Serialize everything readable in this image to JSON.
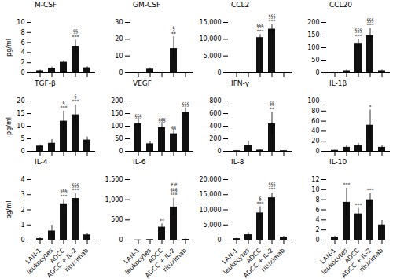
{
  "chart_data": [
    {
      "type": "bar",
      "title": "M-CSF",
      "ylabel": "pg/ml",
      "tick_labels": "y",
      "color": "#111111",
      "categories": [
        "LAN-1",
        "leukocytes",
        "ADCC",
        "ADCC + IL-2",
        "rituximab"
      ],
      "values": [
        0.4,
        0.9,
        2.1,
        5.2,
        1.0
      ],
      "errors": [
        0.15,
        0.25,
        0.3,
        1.3,
        0.2
      ],
      "annotations": [
        null,
        null,
        null,
        "§§\n***",
        null
      ],
      "ylim": [
        0,
        10
      ],
      "yticks": [
        0,
        2,
        4,
        6,
        8,
        10
      ]
    },
    {
      "type": "bar",
      "title": "GM-CSF",
      "tick_labels": "y",
      "color": "#111111",
      "categories": [
        "LAN-1",
        "leukocytes",
        "ADCC",
        "ADCC + IL-2",
        "rituximab"
      ],
      "values": [
        0.05,
        2.2,
        0.05,
        14.5,
        0.05
      ],
      "errors": [
        0.02,
        0.7,
        0.02,
        7.0,
        0.02
      ],
      "annotations": [
        null,
        null,
        null,
        "§\n**",
        null
      ],
      "ylim": [
        0,
        30
      ],
      "yticks": [
        0,
        10,
        20,
        30
      ]
    },
    {
      "type": "bar",
      "title": "CCL2",
      "tick_labels": "y",
      "color": "#111111",
      "categories": [
        "LAN-1",
        "leukocytes",
        "ADCC",
        "ADCC + IL-2",
        "rituximab"
      ],
      "values": [
        200,
        60,
        10500,
        13000,
        60
      ],
      "errors": [
        80,
        25,
        900,
        1300,
        25
      ],
      "annotations": [
        null,
        null,
        "§§§\n***",
        "§§§\n***",
        null
      ],
      "ylim": [
        0,
        15000
      ],
      "yticks": [
        0,
        {
          "value": 5000,
          "label": "5,000"
        },
        {
          "value": 10000,
          "label": "10,000"
        },
        {
          "value": 15000,
          "label": "15,000"
        }
      ]
    },
    {
      "type": "bar",
      "title": "CCL20",
      "tick_labels": "y",
      "color": "#111111",
      "categories": [
        "LAN-1",
        "leukocytes",
        "ADCC",
        "ADCC + IL-2",
        "rituximab"
      ],
      "values": [
        2,
        8,
        115,
        148,
        8
      ],
      "errors": [
        1,
        3,
        18,
        28,
        3
      ],
      "annotations": [
        null,
        null,
        "§§§\n***",
        "§§§\n***",
        null
      ],
      "ylim": [
        0,
        200
      ],
      "yticks": [
        0,
        50,
        100,
        150,
        200
      ]
    },
    {
      "type": "bar",
      "title": "TGF-β",
      "ylabel": "pg/ml",
      "tick_labels": "y",
      "color": "#111111",
      "categories": [
        "LAN-1",
        "leukocytes",
        "ADCC",
        "ADCC + IL-2",
        "rituximab"
      ],
      "values": [
        2.1,
        3.2,
        12.0,
        14.5,
        4.5
      ],
      "errors": [
        0.5,
        1.5,
        4.0,
        4.0,
        1.2
      ],
      "annotations": [
        null,
        null,
        "§\n***",
        "§\n***",
        null
      ],
      "ylim": [
        0,
        20
      ],
      "yticks": [
        0,
        5,
        10,
        15,
        20
      ]
    },
    {
      "type": "bar",
      "title": "VEGF",
      "tick_labels": "y",
      "color": "#111111",
      "categories": [
        "LAN-1",
        "leukocytes",
        "ADCC",
        "ADCC + IL-2",
        "rituximab"
      ],
      "values": [
        110,
        30,
        95,
        70,
        155
      ],
      "errors": [
        18,
        8,
        15,
        10,
        18
      ],
      "annotations": [
        "§§§",
        null,
        "§§§",
        "§§",
        "§§§"
      ],
      "ylim": [
        0,
        200
      ],
      "yticks": [
        0,
        50,
        100,
        150,
        200
      ]
    },
    {
      "type": "bar",
      "title": "IFN-γ",
      "tick_labels": "y",
      "color": "#111111",
      "categories": [
        "LAN-1",
        "leukocytes",
        "ADCC",
        "ADCC + IL-2",
        "rituximab"
      ],
      "values": [
        10,
        100,
        20,
        440,
        10
      ],
      "errors": [
        5,
        60,
        8,
        180,
        5
      ],
      "annotations": [
        null,
        null,
        null,
        "§§\n**",
        null
      ],
      "ylim": [
        0,
        800
      ],
      "yticks": [
        0,
        200,
        400,
        600,
        800
      ]
    },
    {
      "type": "bar",
      "title": "IL-1β",
      "tick_labels": "y",
      "color": "#111111",
      "categories": [
        "LAN-1",
        "leukocytes",
        "ADCC",
        "ADCC + IL-2",
        "rituximab"
      ],
      "values": [
        2,
        8,
        12,
        52,
        8
      ],
      "errors": [
        0.5,
        3,
        4,
        30,
        3
      ],
      "annotations": [
        null,
        null,
        null,
        "*",
        null
      ],
      "ylim": [
        0,
        100
      ],
      "yticks": [
        0,
        20,
        40,
        60,
        80,
        100
      ]
    },
    {
      "type": "bar",
      "title": "IL-4",
      "ylabel": "pg/ml",
      "color": "#111111",
      "categories": [
        "LAN-1",
        "leukocytes",
        "ADCC",
        "ADCC + IL-2",
        "rituximab"
      ],
      "values": [
        0.1,
        0.6,
        2.4,
        2.75,
        0.35
      ],
      "errors": [
        0.05,
        0.38,
        0.28,
        0.32,
        0.12
      ],
      "annotations": [
        null,
        null,
        "§§§\n***",
        "§§§\n***",
        null
      ],
      "ylim": [
        0,
        4
      ],
      "yticks": [
        0,
        1,
        2,
        3,
        4
      ]
    },
    {
      "type": "bar",
      "title": "IL-6",
      "color": "#111111",
      "categories": [
        "LAN-1",
        "leukocytes",
        "ADCC",
        "ADCC + IL-2",
        "rituximab"
      ],
      "values": [
        5,
        15,
        320,
        820,
        20
      ],
      "errors": [
        2,
        5,
        80,
        220,
        8
      ],
      "annotations": [
        null,
        null,
        "**",
        "##\n§§§\n***",
        null
      ],
      "ylim": [
        0,
        1500
      ],
      "yticks": [
        0,
        500,
        {
          "value": 1000,
          "label": "1,000"
        },
        {
          "value": 1500,
          "label": "1,500"
        }
      ]
    },
    {
      "type": "bar",
      "title": "IL-8",
      "color": "#111111",
      "categories": [
        "LAN-1",
        "leukocytes",
        "ADCC",
        "ADCC + IL-2",
        "rituximab"
      ],
      "values": [
        500,
        1800,
        9000,
        14000,
        1000
      ],
      "errors": [
        150,
        700,
        2000,
        1600,
        300
      ],
      "annotations": [
        null,
        null,
        "§\n***",
        "§§§\n***",
        null
      ],
      "ylim": [
        0,
        20000
      ],
      "yticks": [
        0,
        {
          "value": 5000,
          "label": "5,000"
        },
        {
          "value": 10000,
          "label": "10,000"
        },
        {
          "value": 15000,
          "label": "15,000"
        },
        {
          "value": 20000,
          "label": "20,000"
        }
      ]
    },
    {
      "type": "bar",
      "title": "IL-10",
      "color": "#111111",
      "categories": [
        "LAN-1",
        "leukocytes",
        "ADCC",
        "ADCC + IL-2",
        "rituximab"
      ],
      "values": [
        0.6,
        7.5,
        5.2,
        8.0,
        3.0
      ],
      "errors": [
        0.2,
        2.8,
        1.1,
        1.3,
        0.9
      ],
      "annotations": [
        null,
        "***",
        "***",
        "***",
        null
      ],
      "ylim": [
        0,
        12
      ],
      "yticks": [
        0,
        2,
        4,
        6,
        8,
        10,
        12
      ]
    }
  ]
}
